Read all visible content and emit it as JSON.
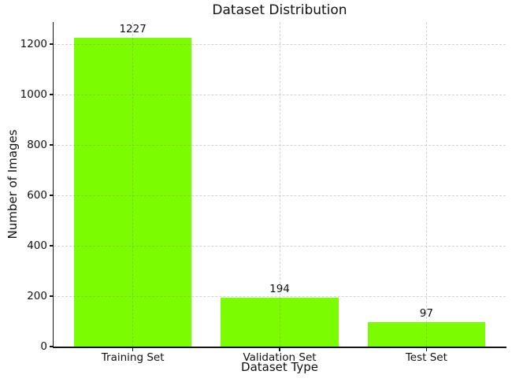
{
  "chart_data": {
    "type": "bar",
    "title": "Dataset Distribution",
    "xlabel": "Dataset Type",
    "ylabel": "Number of Images",
    "categories": [
      "Training Set",
      "Validation Set",
      "Test Set"
    ],
    "values": [
      1227,
      194,
      97
    ],
    "bar_value_labels": [
      "1227",
      "194",
      "97"
    ],
    "yticks": [
      0,
      200,
      400,
      600,
      800,
      1000,
      1200
    ],
    "ylim": [
      0,
      1288
    ],
    "xlim": [
      -0.54,
      2.54
    ],
    "bar_width_data": 0.8,
    "grid": {
      "horizontal": true,
      "vertical": true,
      "style": "dashed",
      "position": "above-bars"
    },
    "legend": "none",
    "colors": {
      "bar": "#7CFC00",
      "axis": "#151515",
      "text": "#111111",
      "grid": "#d5d5d5",
      "background": "#ffffff"
    }
  }
}
